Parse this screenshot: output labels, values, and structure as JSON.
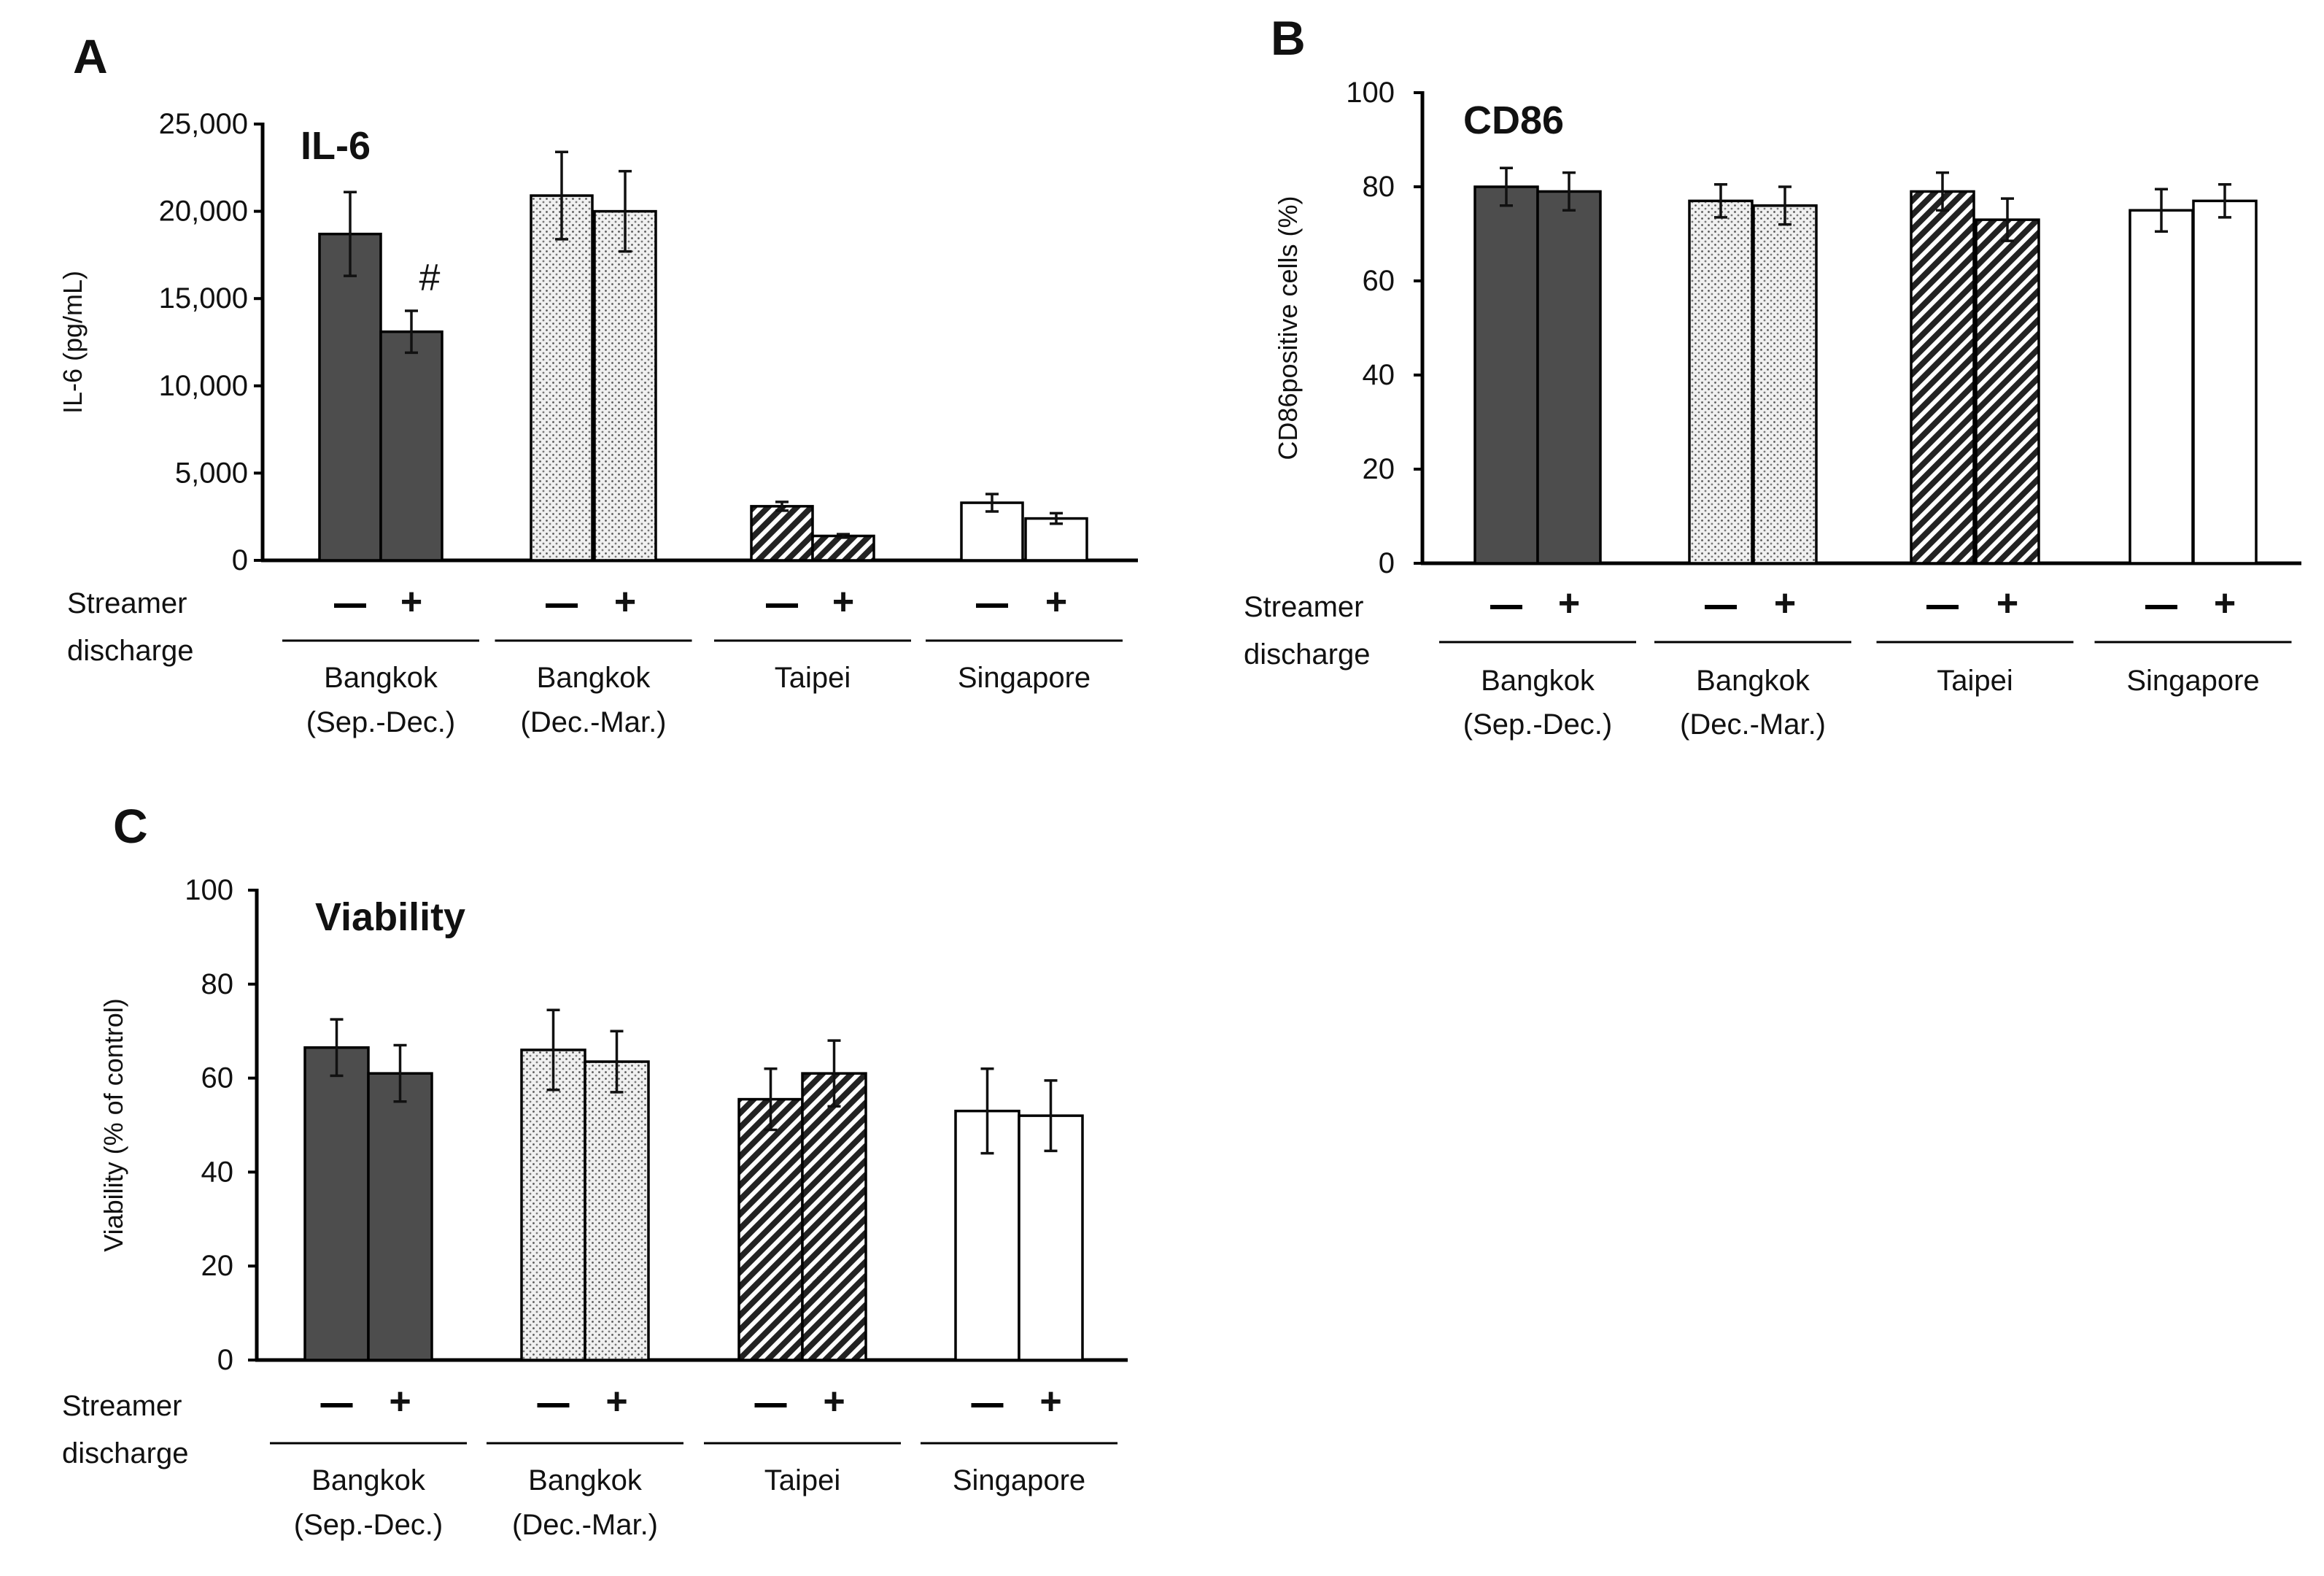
{
  "panels": [
    {
      "letter": "A",
      "title": "IL-6",
      "ylabel": "IL-6 (pg/mL)",
      "ylim": [
        0,
        25000
      ],
      "yticks": [
        0,
        5000,
        10000,
        15000,
        20000,
        25000
      ],
      "ytick_labels": [
        "0",
        "5,000",
        "10,000",
        "15,000",
        "20,000",
        "25,000"
      ],
      "annotations": [
        {
          "text": "#",
          "group": 0,
          "bar": 1
        }
      ]
    },
    {
      "letter": "B",
      "title": "CD86",
      "ylabel": "CD86positive cells (%)",
      "ylim": [
        0,
        100
      ],
      "yticks": [
        0,
        20,
        40,
        60,
        80,
        100
      ],
      "ytick_labels": [
        "0",
        "20",
        "40",
        "60",
        "80",
        "100"
      ],
      "annotations": []
    },
    {
      "letter": "C",
      "title": "Viability",
      "ylabel": "Viability (% of control)",
      "ylim": [
        0,
        100
      ],
      "yticks": [
        0,
        20,
        40,
        60,
        80,
        100
      ],
      "ytick_labels": [
        "0",
        "20",
        "40",
        "60",
        "80",
        "100"
      ],
      "annotations": []
    }
  ],
  "x_row_label": [
    "Streamer",
    "discharge"
  ],
  "treatment_labels": [
    "–",
    "+"
  ],
  "group_labels": [
    [
      "Bangkok",
      "(Sep.-Dec.)"
    ],
    [
      "Bangkok",
      "(Dec.-Mar.)"
    ],
    [
      "Taipei"
    ],
    [
      "Singapore"
    ]
  ],
  "colors": {
    "bangkok_sep_dec": "#4d4d4d",
    "bangkok_dec_mar_fill": "#f0f0f0",
    "bangkok_dec_mar_dots": "#555555",
    "taipei_hatch": "#222222",
    "singapore": "#ffffff",
    "axis": "#000000"
  },
  "chart_data": [
    {
      "type": "bar",
      "title": "IL-6",
      "ylabel": "IL-6 (pg/mL)",
      "xlabel": "Streamer discharge",
      "ylim": [
        0,
        25000
      ],
      "categories": [
        "Bangkok (Sep.-Dec.)",
        "Bangkok (Dec.-Mar.)",
        "Taipei",
        "Singapore"
      ],
      "series": [
        {
          "name": "–",
          "values": [
            18700,
            20900,
            3100,
            3300
          ],
          "errors": [
            2400,
            2500,
            250,
            500
          ]
        },
        {
          "name": "+",
          "values": [
            13100,
            20000,
            1400,
            2400
          ],
          "errors": [
            1200,
            2300,
            100,
            300
          ]
        }
      ]
    },
    {
      "type": "bar",
      "title": "CD86",
      "ylabel": "CD86positive cells (%)",
      "xlabel": "Streamer discharge",
      "ylim": [
        0,
        100
      ],
      "categories": [
        "Bangkok (Sep.-Dec.)",
        "Bangkok (Dec.-Mar.)",
        "Taipei",
        "Singapore"
      ],
      "series": [
        {
          "name": "–",
          "values": [
            80,
            77,
            79,
            75
          ],
          "errors": [
            4,
            3.5,
            4,
            4.5
          ]
        },
        {
          "name": "+",
          "values": [
            79,
            76,
            73,
            77
          ],
          "errors": [
            4,
            4,
            4.5,
            3.5
          ]
        }
      ]
    },
    {
      "type": "bar",
      "title": "Viability",
      "ylabel": "Viability (% of control)",
      "xlabel": "Streamer discharge",
      "ylim": [
        0,
        100
      ],
      "categories": [
        "Bangkok (Sep.-Dec.)",
        "Bangkok (Dec.-Mar.)",
        "Taipei",
        "Singapore"
      ],
      "series": [
        {
          "name": "–",
          "values": [
            66.5,
            66,
            55.5,
            53
          ],
          "errors": [
            6,
            8.5,
            6.5,
            9
          ]
        },
        {
          "name": "+",
          "values": [
            61,
            63.5,
            61,
            52
          ],
          "errors": [
            6,
            6.5,
            7,
            7.5
          ]
        }
      ]
    }
  ]
}
